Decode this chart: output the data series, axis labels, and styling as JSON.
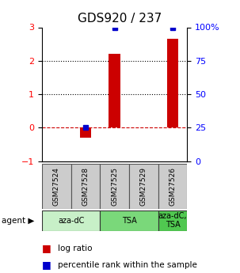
{
  "title": "GDS920 / 237",
  "samples": [
    "GSM27524",
    "GSM27528",
    "GSM27525",
    "GSM27529",
    "GSM27526"
  ],
  "log_ratio": [
    0.0,
    -0.3,
    2.2,
    0.0,
    2.65
  ],
  "percentile_rank": [
    null,
    25.0,
    100.0,
    null,
    100.0
  ],
  "agents": [
    {
      "label": "aza-dC",
      "span": [
        0,
        2
      ],
      "color": "#c8f0c8"
    },
    {
      "label": "TSA",
      "span": [
        2,
        4
      ],
      "color": "#7ad87a"
    },
    {
      "label": "aza-dC,\nTSA",
      "span": [
        4,
        5
      ],
      "color": "#50c850"
    }
  ],
  "ylim": [
    -1,
    3
  ],
  "yticks_left": [
    -1,
    0,
    1,
    2,
    3
  ],
  "yticks_right": [
    0,
    25,
    50,
    75,
    100
  ],
  "bar_color": "#cc0000",
  "dot_color": "#0000cc",
  "zero_line_color": "#cc0000",
  "grid_color": "#000000",
  "title_fontsize": 11,
  "tick_fontsize": 8,
  "background_color": "#ffffff"
}
